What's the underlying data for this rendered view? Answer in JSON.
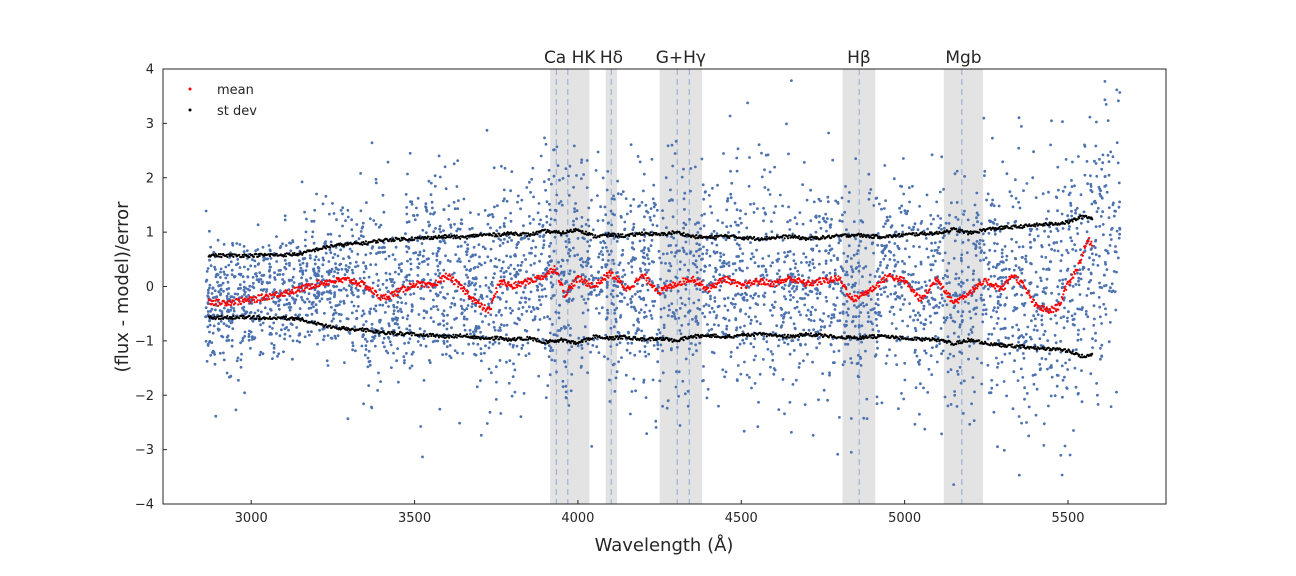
{
  "chart_data": {
    "type": "scatter",
    "xlabel": "Wavelength (Å)",
    "ylabel": "(flux - model)/error",
    "xlim": [
      2730,
      5800
    ],
    "ylim": [
      -4,
      4
    ],
    "xticks": [
      3000,
      3500,
      4000,
      4500,
      5000,
      5500
    ],
    "yticks": [
      -4,
      -3,
      -2,
      -1,
      0,
      1,
      2,
      3,
      4
    ],
    "grid": false,
    "legend": {
      "placement": "top-left",
      "entries": [
        "mean",
        "st dev"
      ]
    },
    "colors": {
      "points": "#4c72b0",
      "mean": "#ff0000",
      "stdev": "#000000",
      "band": "#d9d9d9",
      "line_marker": "#9eb3d6"
    },
    "residuals": {
      "x_range": [
        2860,
        5660
      ],
      "approx_count": 9000,
      "description_scale": "scatter of normalized residuals, roughly gaussian with st dev given by stdev series"
    },
    "mean_series": {
      "name": "mean",
      "x": [
        2870,
        2900,
        2950,
        3000,
        3050,
        3100,
        3150,
        3200,
        3250,
        3300,
        3350,
        3400,
        3450,
        3500,
        3550,
        3600,
        3650,
        3700,
        3730,
        3760,
        3800,
        3850,
        3900,
        3930,
        3960,
        4000,
        4050,
        4100,
        4150,
        4200,
        4250,
        4300,
        4350,
        4400,
        4450,
        4500,
        4550,
        4600,
        4650,
        4700,
        4750,
        4800,
        4840,
        4870,
        4900,
        4950,
        5000,
        5050,
        5100,
        5150,
        5200,
        5250,
        5300,
        5330,
        5360,
        5400,
        5440,
        5470,
        5500,
        5530,
        5560,
        5575
      ],
      "y": [
        -0.27,
        -0.3,
        -0.28,
        -0.25,
        -0.18,
        -0.12,
        -0.05,
        0.05,
        0.1,
        0.12,
        0.02,
        -0.22,
        -0.1,
        0.05,
        0.0,
        0.2,
        -0.05,
        -0.35,
        -0.45,
        0.1,
        0.0,
        0.1,
        0.2,
        0.35,
        -0.15,
        0.15,
        0.0,
        0.25,
        -0.05,
        0.2,
        -0.1,
        0.05,
        0.15,
        -0.05,
        0.15,
        0.0,
        0.1,
        0.05,
        0.15,
        0.05,
        0.1,
        0.15,
        -0.25,
        -0.15,
        -0.05,
        0.2,
        0.1,
        -0.25,
        0.15,
        -0.3,
        -0.1,
        0.1,
        -0.05,
        0.22,
        0.05,
        -0.35,
        -0.45,
        -0.38,
        0.05,
        0.35,
        0.85,
        0.8
      ]
    },
    "stdev_series": {
      "name": "st dev",
      "x": [
        2870,
        2900,
        2950,
        3000,
        3050,
        3100,
        3150,
        3200,
        3250,
        3300,
        3350,
        3400,
        3450,
        3500,
        3550,
        3600,
        3650,
        3700,
        3750,
        3800,
        3850,
        3900,
        3950,
        4000,
        4050,
        4100,
        4150,
        4200,
        4250,
        4300,
        4350,
        4400,
        4450,
        4500,
        4550,
        4600,
        4650,
        4700,
        4750,
        4800,
        4850,
        4900,
        4950,
        5000,
        5050,
        5100,
        5150,
        5200,
        5250,
        5300,
        5350,
        5400,
        5450,
        5500,
        5550,
        5575
      ],
      "y": [
        0.58,
        0.57,
        0.57,
        0.57,
        0.58,
        0.58,
        0.6,
        0.68,
        0.75,
        0.78,
        0.8,
        0.85,
        0.87,
        0.88,
        0.9,
        0.92,
        0.9,
        0.95,
        0.95,
        0.98,
        0.95,
        1.02,
        0.98,
        1.05,
        0.92,
        0.95,
        0.93,
        0.98,
        0.95,
        1.0,
        0.92,
        0.9,
        0.93,
        0.9,
        0.88,
        0.9,
        0.92,
        0.88,
        0.9,
        0.93,
        0.95,
        0.92,
        0.92,
        0.95,
        0.97,
        0.98,
        1.05,
        0.98,
        1.05,
        1.08,
        1.1,
        1.13,
        1.15,
        1.18,
        1.3,
        1.25
      ]
    },
    "bands": [
      {
        "label": "Ca HK",
        "x_from": 3915,
        "x_to": 4035,
        "lines": [
          3934,
          3969
        ]
      },
      {
        "label": "Hδ",
        "x_from": 4085,
        "x_to": 4120,
        "lines": [
          4102
        ]
      },
      {
        "label": "G+Hγ",
        "x_from": 4250,
        "x_to": 4380,
        "lines": [
          4304,
          4341
        ]
      },
      {
        "label": "Hβ",
        "x_from": 4810,
        "x_to": 4910,
        "lines": [
          4861
        ]
      },
      {
        "label": "Mgb",
        "x_from": 5120,
        "x_to": 5240,
        "lines": [
          5175
        ]
      }
    ]
  }
}
